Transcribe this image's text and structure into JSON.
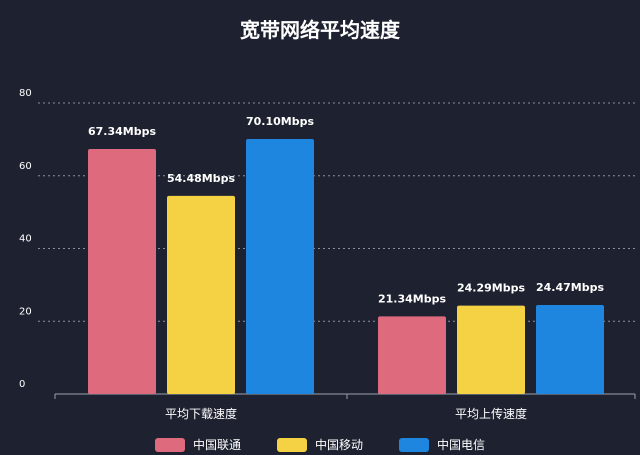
{
  "chart_data": {
    "type": "bar",
    "title": "宽带网络平均速度",
    "categories": [
      "平均下载速度",
      "平均上传速度"
    ],
    "series": [
      {
        "name": "中国联通",
        "color": "#de6a7d",
        "values": [
          67.34,
          21.34
        ],
        "labels": [
          "67.34Mbps",
          "21.34Mbps"
        ]
      },
      {
        "name": "中国移动",
        "color": "#f5d144",
        "values": [
          54.48,
          24.29
        ],
        "labels": [
          "54.48Mbps",
          "24.29Mbps"
        ]
      },
      {
        "name": "中国电信",
        "color": "#1f86e0",
        "values": [
          70.1,
          24.47
        ],
        "labels": [
          "70.10Mbps",
          "24.47Mbps"
        ]
      }
    ],
    "yticks": [
      0,
      20,
      40,
      60,
      80
    ],
    "ylim": [
      0,
      80
    ],
    "grid": true,
    "legend_position": "bottom"
  },
  "colors": {
    "background": "#1e2230",
    "text": "#ffffff",
    "axis": "#9aa0ad",
    "grid": "#8a8f9c"
  }
}
